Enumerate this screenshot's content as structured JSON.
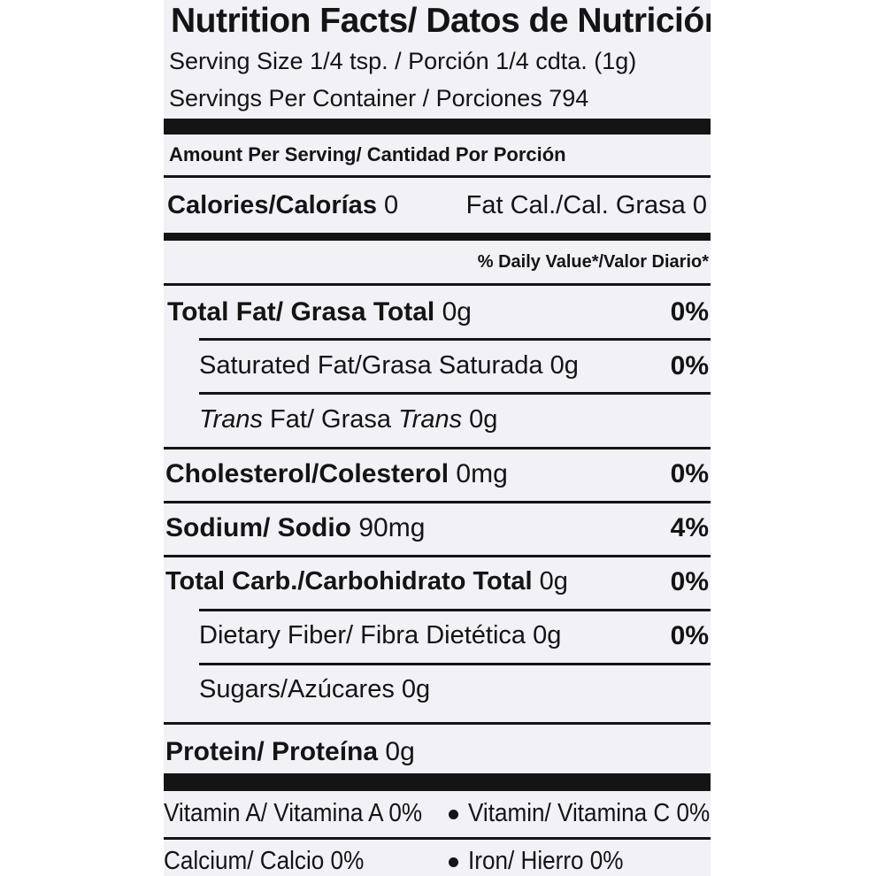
{
  "label": {
    "title": "Nutrition Facts/ Datos de Nutrición",
    "serving_size": "Serving Size 1/4 tsp. / Porción 1/4 cdta. (1g)",
    "servings_per_container": "Servings Per Container / Porciones 794",
    "amount_per_serving": "Amount Per Serving/ Cantidad Por Porción",
    "calories": {
      "label": "Calories/Calorías",
      "value": "0",
      "fat_cal": "Fat Cal./Cal. Grasa 0"
    },
    "daily_value_header": "% Daily Value*/Valor Diario*",
    "nutrients": {
      "total_fat": {
        "label": "Total Fat/ Grasa Total",
        "amount": "0g",
        "dv": "0%"
      },
      "saturated_fat": {
        "label": "Saturated Fat/Grasa Saturada",
        "amount": "0g",
        "dv": "0%"
      },
      "trans_fat": {
        "label_italic_1": "Trans",
        "label_mid": " Fat/ Grasa ",
        "label_italic_2": "Trans",
        "amount": "0g"
      },
      "cholesterol": {
        "label": "Cholesterol/Colesterol",
        "amount": "0mg",
        "dv": "0%"
      },
      "sodium": {
        "label": "Sodium/ Sodio",
        "amount": "90mg",
        "dv": "4%"
      },
      "total_carb": {
        "label": "Total Carb./Carbohidrato Total",
        "amount": "0g",
        "dv": "0%"
      },
      "dietary_fiber": {
        "label": "Dietary Fiber/ Fibra Dietética",
        "amount": "0g",
        "dv": "0%"
      },
      "sugars": {
        "label": "Sugars/Azúcares",
        "amount": "0g"
      },
      "protein": {
        "label": "Protein/ Proteína",
        "amount": "0g"
      }
    },
    "vitamins": {
      "vitamin_a": "Vitamin A/ Vitamina A 0%",
      "vitamin_c": "Vitamin/ Vitamina C 0%",
      "calcium": "Calcium/ Calcio 0%",
      "iron": "Iron/ Hierro 0%"
    }
  },
  "colors": {
    "panel_background": "#f1f1f6",
    "ink": "#141414"
  }
}
